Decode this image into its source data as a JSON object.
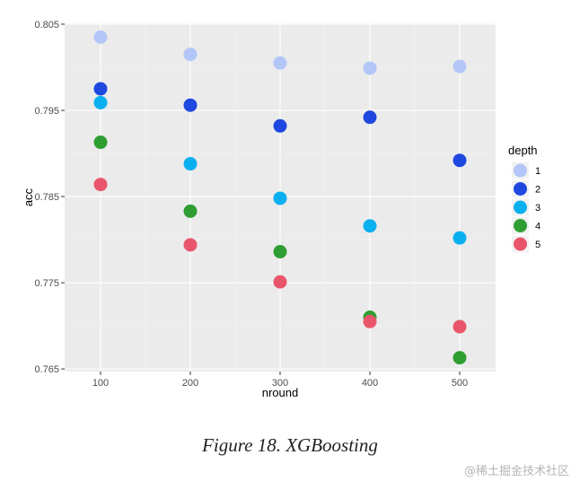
{
  "chart_data": {
    "type": "scatter",
    "xlabel": "nround",
    "ylabel": "acc",
    "x_ticks": [
      "100",
      "200",
      "300",
      "400",
      "500"
    ],
    "y_ticks": [
      "0.765",
      "0.775",
      "0.785",
      "0.795",
      "0.805"
    ],
    "xlim": [
      60,
      540
    ],
    "ylim": [
      0.7647,
      0.8051
    ],
    "grid": true,
    "legend": {
      "title": "depth",
      "placement": "right"
    },
    "series": [
      {
        "name": "1",
        "color": "#b3c6f7",
        "x": [
          100,
          200,
          300,
          400,
          500
        ],
        "y": [
          0.8035,
          0.8015,
          0.8005,
          0.7999,
          0.8001
        ]
      },
      {
        "name": "2",
        "color": "#1f48e0",
        "x": [
          100,
          200,
          300,
          400,
          500
        ],
        "y": [
          0.7975,
          0.7956,
          0.7932,
          0.7942,
          0.7892
        ]
      },
      {
        "name": "3",
        "color": "#0aaff0",
        "x": [
          100,
          200,
          300,
          400,
          500
        ],
        "y": [
          0.7959,
          0.7888,
          0.7848,
          0.7816,
          0.7802
        ]
      },
      {
        "name": "4",
        "color": "#2e9e32",
        "x": [
          100,
          200,
          300,
          400,
          500
        ],
        "y": [
          0.7913,
          0.7833,
          0.7786,
          0.771,
          0.7663
        ]
      },
      {
        "name": "5",
        "color": "#e9566b",
        "x": [
          100,
          200,
          300,
          400,
          500
        ],
        "y": [
          0.7864,
          0.7794,
          0.7751,
          0.7705,
          0.7699
        ]
      }
    ]
  },
  "caption": "Figure 18. XGBoosting",
  "watermark": "@稀土掘金技术社区"
}
